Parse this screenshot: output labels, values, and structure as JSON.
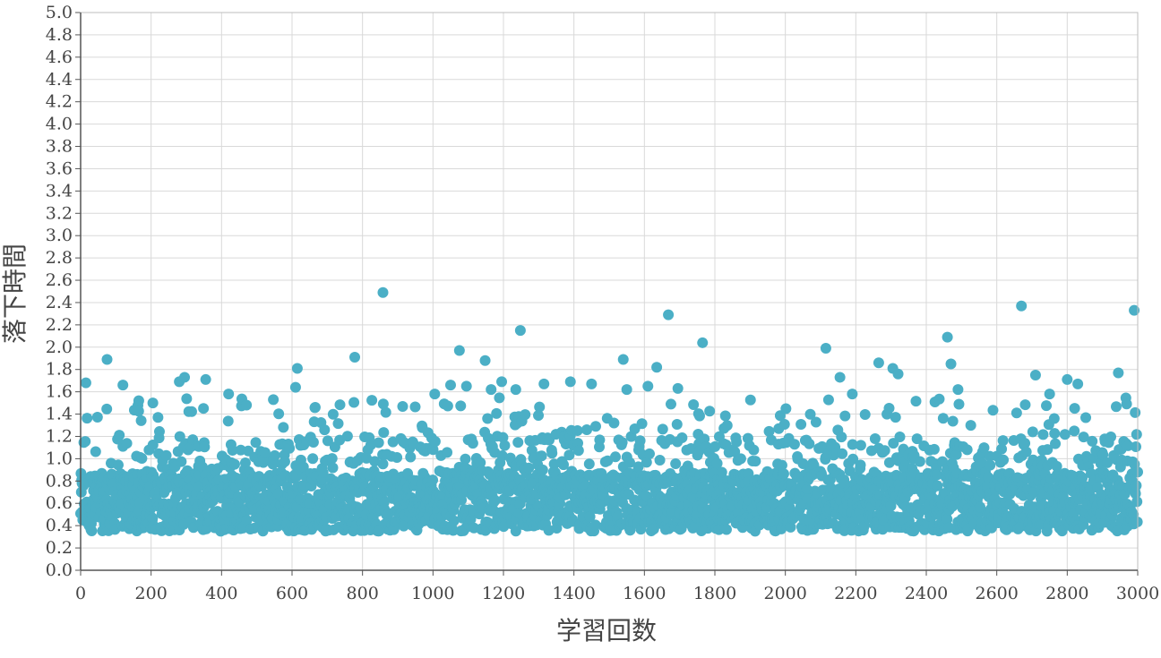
{
  "chart_data": {
    "type": "scatter",
    "title": "",
    "xlabel": "学習回数",
    "ylabel": "落下時間",
    "xlim": [
      0,
      3000
    ],
    "ylim": [
      0.0,
      5.0
    ],
    "x_ticks": [
      "0",
      "200",
      "400",
      "600",
      "800",
      "1000",
      "1200",
      "1400",
      "1600",
      "1800",
      "2000",
      "2200",
      "2400",
      "2600",
      "2800",
      "3000"
    ],
    "y_ticks": [
      "0.0",
      "0.2",
      "0.4",
      "0.6",
      "0.8",
      "1.0",
      "1.2",
      "1.4",
      "1.6",
      "1.8",
      "2.0",
      "2.2",
      "2.4",
      "2.6",
      "2.8",
      "3.0",
      "3.2",
      "3.4",
      "3.6",
      "3.8",
      "4.0",
      "4.2",
      "4.4",
      "4.6",
      "4.8",
      "5.0"
    ],
    "grid": true,
    "legend": "none",
    "marker_color": "#4bafc6",
    "n_points": 3000,
    "typical_range": [
      0.3,
      1.0
    ],
    "outliers": [
      {
        "x": 15,
        "y": 1.68
      },
      {
        "x": 75,
        "y": 1.89
      },
      {
        "x": 120,
        "y": 1.66
      },
      {
        "x": 165,
        "y": 1.52
      },
      {
        "x": 205,
        "y": 1.5
      },
      {
        "x": 280,
        "y": 1.69
      },
      {
        "x": 295,
        "y": 1.73
      },
      {
        "x": 355,
        "y": 1.71
      },
      {
        "x": 420,
        "y": 1.58
      },
      {
        "x": 610,
        "y": 1.64
      },
      {
        "x": 615,
        "y": 1.81
      },
      {
        "x": 778,
        "y": 1.91
      },
      {
        "x": 858,
        "y": 2.49
      },
      {
        "x": 1005,
        "y": 1.58
      },
      {
        "x": 1050,
        "y": 1.66
      },
      {
        "x": 1075,
        "y": 1.97
      },
      {
        "x": 1095,
        "y": 1.65
      },
      {
        "x": 1148,
        "y": 1.88
      },
      {
        "x": 1165,
        "y": 1.62
      },
      {
        "x": 1195,
        "y": 1.69
      },
      {
        "x": 1235,
        "y": 1.62
      },
      {
        "x": 1248,
        "y": 2.15
      },
      {
        "x": 1315,
        "y": 1.67
      },
      {
        "x": 1390,
        "y": 1.69
      },
      {
        "x": 1450,
        "y": 1.67
      },
      {
        "x": 1540,
        "y": 1.89
      },
      {
        "x": 1550,
        "y": 1.62
      },
      {
        "x": 1610,
        "y": 1.65
      },
      {
        "x": 1635,
        "y": 1.82
      },
      {
        "x": 1668,
        "y": 2.29
      },
      {
        "x": 1695,
        "y": 1.63
      },
      {
        "x": 1765,
        "y": 2.04
      },
      {
        "x": 2115,
        "y": 1.99
      },
      {
        "x": 2155,
        "y": 1.73
      },
      {
        "x": 2190,
        "y": 1.58
      },
      {
        "x": 2265,
        "y": 1.86
      },
      {
        "x": 2305,
        "y": 1.81
      },
      {
        "x": 2320,
        "y": 1.76
      },
      {
        "x": 2460,
        "y": 2.09
      },
      {
        "x": 2470,
        "y": 1.85
      },
      {
        "x": 2490,
        "y": 1.62
      },
      {
        "x": 2670,
        "y": 2.37
      },
      {
        "x": 2710,
        "y": 1.75
      },
      {
        "x": 2750,
        "y": 1.58
      },
      {
        "x": 2800,
        "y": 1.71
      },
      {
        "x": 2830,
        "y": 1.67
      },
      {
        "x": 2945,
        "y": 1.77
      },
      {
        "x": 2990,
        "y": 2.33
      }
    ]
  }
}
